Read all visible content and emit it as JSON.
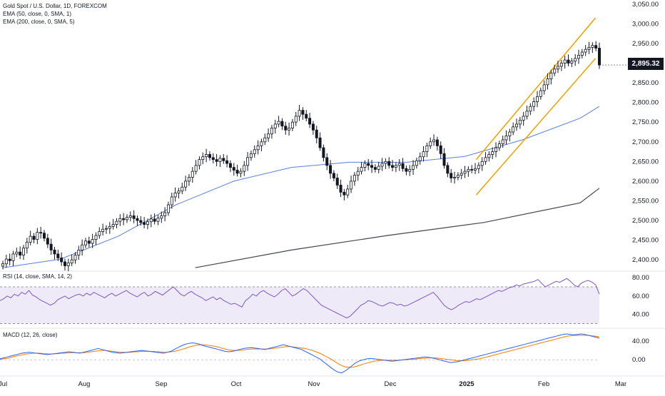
{
  "chart_data": {
    "type": "candlestick",
    "title": "Gold Spot / U.S. Dollar, 1D, FOREXCOM",
    "legend": [
      {
        "label": "EMA (50, close, 0, SMA, 1)",
        "color": "#5b7fd6"
      },
      {
        "label": "EMA (200, close, 0, SMA, 5)",
        "color": "#434651"
      }
    ],
    "last_price": "2,895.32",
    "price_axis": {
      "ticks": [
        "3,050.00",
        "3,000.00",
        "2,950.00",
        "2,900.00",
        "2,850.00",
        "2,800.00",
        "2,750.00",
        "2,700.00",
        "2,650.00",
        "2,600.00",
        "2,550.00",
        "2,500.00",
        "2,450.00",
        "2,400.00"
      ],
      "range": [
        2375,
        3055
      ]
    },
    "x_labels": [
      "Jul",
      "Aug",
      "Sep",
      "Oct",
      "Nov",
      "Dec",
      "2025",
      "Feb",
      "Mar"
    ],
    "x_label_bold": "2025",
    "closes": [
      2390,
      2402,
      2398,
      2415,
      2420,
      2412,
      2430,
      2445,
      2460,
      2452,
      2470,
      2468,
      2455,
      2440,
      2425,
      2415,
      2405,
      2395,
      2385,
      2392,
      2400,
      2412,
      2425,
      2438,
      2448,
      2442,
      2452,
      2462,
      2472,
      2478,
      2480,
      2485,
      2490,
      2498,
      2505,
      2502,
      2508,
      2512,
      2505,
      2500,
      2495,
      2490,
      2497,
      2504,
      2498,
      2506,
      2512,
      2520,
      2540,
      2560,
      2570,
      2575,
      2585,
      2600,
      2610,
      2625,
      2640,
      2655,
      2662,
      2668,
      2660,
      2655,
      2650,
      2658,
      2652,
      2645,
      2635,
      2628,
      2620,
      2625,
      2640,
      2660,
      2670,
      2680,
      2690,
      2700,
      2710,
      2720,
      2735,
      2745,
      2752,
      2740,
      2730,
      2735,
      2750,
      2765,
      2780,
      2770,
      2760,
      2745,
      2730,
      2710,
      2685,
      2660,
      2640,
      2620,
      2608,
      2590,
      2572,
      2565,
      2580,
      2600,
      2615,
      2625,
      2635,
      2645,
      2640,
      2635,
      2630,
      2638,
      2645,
      2650,
      2640,
      2635,
      2640,
      2645,
      2632,
      2625,
      2630,
      2640,
      2652,
      2662,
      2675,
      2690,
      2700,
      2705,
      2690,
      2670,
      2640,
      2620,
      2608,
      2610,
      2615,
      2620,
      2625,
      2630,
      2628,
      2632,
      2640,
      2650,
      2660,
      2668,
      2675,
      2685,
      2695,
      2705,
      2715,
      2725,
      2738,
      2745,
      2755,
      2765,
      2778,
      2790,
      2802,
      2815,
      2830,
      2845,
      2860,
      2875,
      2885,
      2892,
      2900,
      2908,
      2900,
      2905,
      2912,
      2920,
      2928,
      2935,
      2940,
      2945,
      2938,
      2895.32
    ],
    "ema50": [
      [
        0,
        2380
      ],
      [
        30,
        2402
      ],
      [
        60,
        2460
      ],
      [
        90,
        2540
      ],
      [
        120,
        2600
      ],
      [
        150,
        2635
      ],
      [
        180,
        2648
      ],
      [
        210,
        2648
      ],
      [
        240,
        2663
      ],
      [
        270,
        2705
      ],
      [
        300,
        2760
      ],
      [
        310,
        2790
      ]
    ],
    "ema200": [
      [
        100,
        2380
      ],
      [
        150,
        2425
      ],
      [
        200,
        2462
      ],
      [
        250,
        2495
      ],
      [
        300,
        2545
      ],
      [
        310,
        2582
      ]
    ],
    "channel": {
      "upper": [
        [
          2,
          2655
        ],
        [
          64,
          3015
        ]
      ],
      "lower": [
        [
          2,
          2565
        ],
        [
          64,
          2912
        ]
      ],
      "color": "#f5a30a"
    },
    "rsi": {
      "label": "RSI (14, close, SMA, 14, 2)",
      "ticks": [
        "80.00",
        "60.00",
        "40.00"
      ],
      "overbought": 70,
      "oversold": 30,
      "range": [
        28,
        84
      ],
      "values": [
        55,
        57,
        60,
        58,
        62,
        60,
        64,
        62,
        66,
        61,
        59,
        56,
        54,
        52,
        50,
        52,
        56,
        58,
        60,
        57,
        59,
        61,
        62,
        60,
        63,
        61,
        64,
        62,
        60,
        58,
        61,
        63,
        60,
        62,
        64,
        66,
        63,
        61,
        59,
        62,
        64,
        60,
        62,
        65,
        63,
        61,
        64,
        67,
        70,
        66,
        62,
        60,
        63,
        65,
        62,
        60,
        58,
        55,
        57,
        59,
        56,
        58,
        55,
        53,
        51,
        52,
        50,
        48,
        55,
        58,
        62,
        60,
        64,
        66,
        63,
        61,
        59,
        62,
        66,
        68,
        64,
        60,
        62,
        65,
        68,
        66,
        62,
        58,
        54,
        50,
        48,
        46,
        44,
        42,
        40,
        38,
        36,
        38,
        42,
        46,
        50,
        52,
        55,
        54,
        52,
        50,
        49,
        51,
        53,
        52,
        50,
        51,
        49,
        50,
        52,
        54,
        56,
        58,
        60,
        62,
        64,
        60,
        55,
        50,
        47,
        45,
        47,
        50,
        52,
        54,
        53,
        55,
        57,
        56,
        58,
        60,
        62,
        64,
        66,
        65,
        67,
        69,
        70,
        72,
        71,
        73,
        74,
        75,
        76,
        78,
        74,
        70,
        72,
        74,
        76,
        75,
        77,
        79,
        76,
        72,
        70,
        74,
        76,
        77,
        75,
        72,
        62
      ]
    },
    "macd": {
      "label": "MACD (12, 26, close)",
      "ticks": [
        "40.00",
        "0.00"
      ],
      "range": [
        -30,
        55
      ],
      "macd": [
        2,
        4,
        6,
        8,
        10,
        12,
        14,
        15,
        16,
        15,
        14,
        13,
        12,
        11,
        12,
        13,
        14,
        15,
        16,
        17,
        16,
        15,
        14,
        16,
        18,
        20,
        22,
        24,
        22,
        20,
        18,
        16,
        15,
        14,
        15,
        16,
        17,
        18,
        19,
        20,
        19,
        18,
        17,
        16,
        15,
        14,
        16,
        18,
        22,
        26,
        30,
        33,
        35,
        36,
        35,
        33,
        30,
        28,
        26,
        24,
        22,
        20,
        18,
        17,
        18,
        20,
        22,
        24,
        25,
        26,
        25,
        24,
        23,
        22,
        24,
        26,
        28,
        30,
        32,
        30,
        28,
        26,
        24,
        22,
        18,
        14,
        10,
        6,
        2,
        -4,
        -10,
        -16,
        -22,
        -26,
        -28,
        -24,
        -18,
        -12,
        -6,
        -2,
        0,
        2,
        3,
        2,
        1,
        0,
        -1,
        -2,
        -3,
        -2,
        -1,
        0,
        1,
        2,
        3,
        4,
        5,
        6,
        5,
        4,
        2,
        0,
        -2,
        -4,
        -6,
        -5,
        -4,
        -2,
        0,
        2,
        4,
        6,
        8,
        10,
        12,
        14,
        16,
        18,
        20,
        22,
        24,
        26,
        28,
        30,
        32,
        34,
        36,
        38,
        40,
        42,
        44,
        46,
        48,
        50,
        52,
        54,
        55,
        54,
        53,
        54,
        55,
        54,
        52,
        50,
        48,
        46
      ],
      "signal": [
        1,
        2,
        3,
        5,
        7,
        9,
        10,
        12,
        13,
        14,
        14,
        14,
        13,
        13,
        12,
        13,
        13,
        14,
        14,
        15,
        15,
        15,
        15,
        15,
        16,
        17,
        18,
        19,
        20,
        20,
        19,
        18,
        17,
        16,
        16,
        16,
        16,
        17,
        17,
        18,
        18,
        18,
        18,
        17,
        17,
        16,
        16,
        17,
        18,
        20,
        22,
        24,
        27,
        29,
        31,
        32,
        32,
        31,
        30,
        29,
        27,
        25,
        23,
        21,
        20,
        20,
        20,
        21,
        22,
        23,
        23,
        23,
        23,
        23,
        23,
        24,
        25,
        26,
        27,
        28,
        28,
        27,
        26,
        25,
        24,
        22,
        20,
        17,
        14,
        10,
        6,
        2,
        -3,
        -8,
        -12,
        -15,
        -16,
        -16,
        -14,
        -12,
        -9,
        -7,
        -5,
        -3,
        -2,
        -1,
        -1,
        -1,
        -1,
        -1,
        -1,
        0,
        0,
        1,
        1,
        2,
        3,
        3,
        4,
        4,
        4,
        3,
        2,
        1,
        0,
        -1,
        -2,
        -2,
        -2,
        -1,
        0,
        1,
        2,
        4,
        6,
        8,
        10,
        12,
        14,
        16,
        18,
        20,
        22,
        24,
        26,
        28,
        30,
        32,
        34,
        36,
        38,
        40,
        42,
        44,
        46,
        48,
        50,
        51,
        52,
        52,
        52,
        52,
        52,
        51,
        50,
        49
      ]
    }
  }
}
